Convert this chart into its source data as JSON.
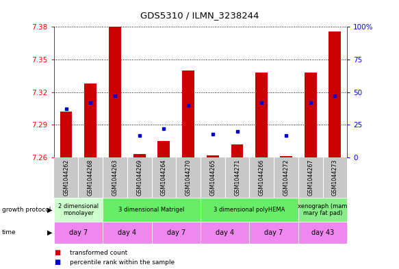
{
  "title": "GDS5310 / ILMN_3238244",
  "samples": [
    "GSM1044262",
    "GSM1044268",
    "GSM1044263",
    "GSM1044269",
    "GSM1044264",
    "GSM1044270",
    "GSM1044265",
    "GSM1044271",
    "GSM1044266",
    "GSM1044272",
    "GSM1044267",
    "GSM1044273"
  ],
  "transformed_count": [
    7.302,
    7.328,
    7.382,
    7.263,
    7.275,
    7.34,
    7.262,
    7.272,
    7.338,
    7.261,
    7.338,
    7.376
  ],
  "percentile_rank": [
    37,
    42,
    47,
    17,
    22,
    40,
    18,
    20,
    42,
    17,
    42,
    47
  ],
  "ylim_left": [
    7.26,
    7.38
  ],
  "ylim_right": [
    0,
    100
  ],
  "yticks_left": [
    7.26,
    7.29,
    7.32,
    7.35,
    7.38
  ],
  "yticks_right": [
    0,
    25,
    50,
    75,
    100
  ],
  "bar_color": "#cc0000",
  "dot_color": "#0000cc",
  "bar_width": 0.5,
  "baseline": 7.26,
  "growth_protocol_groups": [
    {
      "label": "2 dimensional\nmonolayer",
      "start": 0,
      "end": 2,
      "color": "#ccffcc"
    },
    {
      "label": "3 dimensional Matrigel",
      "start": 2,
      "end": 6,
      "color": "#66ee66"
    },
    {
      "label": "3 dimensional polyHEMA",
      "start": 6,
      "end": 10,
      "color": "#66ee66"
    },
    {
      "label": "xenograph (mam\nmary fat pad)",
      "start": 10,
      "end": 12,
      "color": "#88ee88"
    }
  ],
  "time_groups": [
    {
      "label": "day 7",
      "start": 0,
      "end": 2
    },
    {
      "label": "day 4",
      "start": 2,
      "end": 4
    },
    {
      "label": "day 7",
      "start": 4,
      "end": 6
    },
    {
      "label": "day 4",
      "start": 6,
      "end": 8
    },
    {
      "label": "day 7",
      "start": 8,
      "end": 10
    },
    {
      "label": "day 43",
      "start": 10,
      "end": 12
    }
  ],
  "time_color": "#ee88ee",
  "sample_bg_color": "#c8c8c8",
  "legend_items": [
    {
      "label": "transformed count",
      "color": "#cc0000"
    },
    {
      "label": "percentile rank within the sample",
      "color": "#0000cc"
    }
  ]
}
